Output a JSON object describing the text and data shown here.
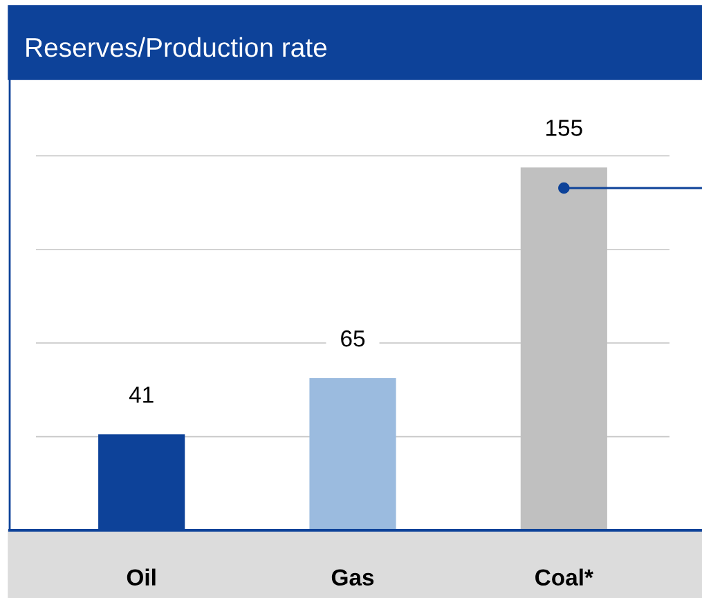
{
  "chart_data": {
    "type": "bar",
    "title": "Reserves/Production rate",
    "categories": [
      "Oil",
      "Gas",
      "Coal*"
    ],
    "values": [
      41,
      65,
      155
    ],
    "colors": [
      "#0d4299",
      "#9bbbdf",
      "#c0c0c0"
    ],
    "yticks": [
      {
        "value": 40,
        "label": null
      },
      {
        "value": 80,
        "label": null
      },
      {
        "value": 120,
        "label": null
      },
      {
        "value": 160,
        "label": null
      }
    ],
    "grid": "y",
    "tick_labels": "x",
    "data_labels": true
  }
}
